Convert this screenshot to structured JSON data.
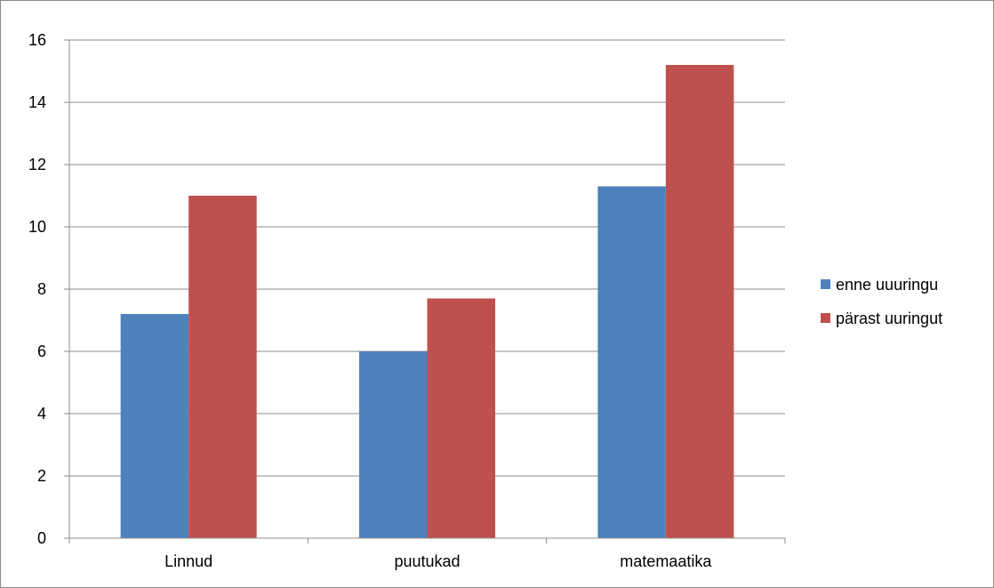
{
  "chart_data": {
    "type": "bar",
    "title": "",
    "xlabel": "",
    "ylabel": "",
    "categories": [
      "Linnud",
      "puutukad",
      "matemaatika"
    ],
    "series": [
      {
        "name": "enne uuuringu",
        "values": [
          7.2,
          6.0,
          11.3
        ],
        "color": "#4f81bd"
      },
      {
        "name": "pärast uuringut",
        "values": [
          11.0,
          7.7,
          15.2
        ],
        "color": "#c0504d"
      }
    ],
    "ylim": [
      0,
      16
    ],
    "yticks": [
      "0",
      "2",
      "4",
      "6",
      "8",
      "10",
      "12",
      "14",
      "16"
    ],
    "grid": true,
    "legend": "right"
  }
}
